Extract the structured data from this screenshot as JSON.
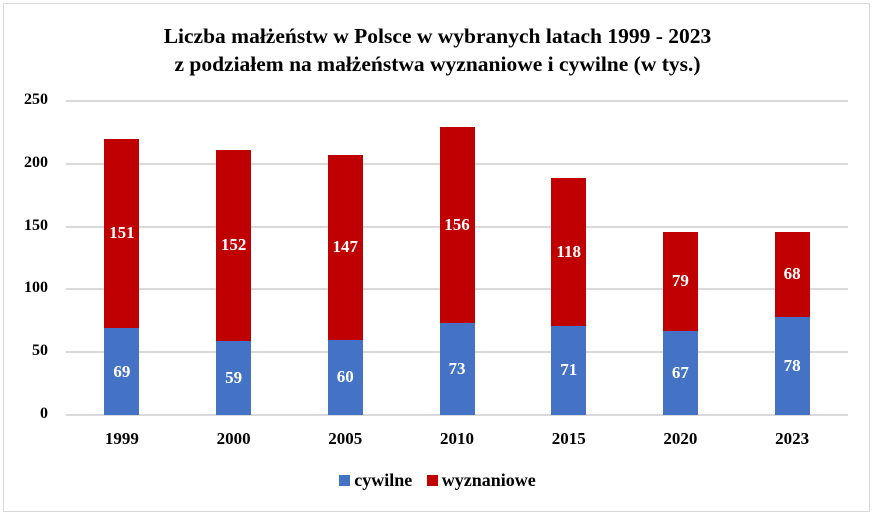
{
  "chart_data": {
    "type": "bar",
    "stacked": true,
    "title": "Liczba małżeństw w Polsce w wybranych latach 1999 - 2023 z podziałem na małżeństwa wyznaniowe i cywilne (w tys.)",
    "title_lines": [
      "Liczba małżeństw w Polsce w wybranych latach 1999 - 2023",
      "z podziałem na małżeństwa wyznaniowe i cywilne (w tys.)"
    ],
    "xlabel": "",
    "ylabel": "",
    "ylim": [
      0,
      250
    ],
    "yticks": [
      "0",
      "50",
      "100",
      "150",
      "200",
      "250"
    ],
    "grid": true,
    "legend_position": "bottom",
    "categories": [
      "1999",
      "2000",
      "2005",
      "2010",
      "2015",
      "2020",
      "2023"
    ],
    "series": [
      {
        "name": "cywilne",
        "color": "#4472C4",
        "values": [
          69,
          59,
          60,
          73,
          71,
          67,
          78
        ]
      },
      {
        "name": "wyznaniowe",
        "color": "#C00000",
        "values": [
          151,
          152,
          147,
          156,
          118,
          79,
          68
        ]
      }
    ]
  }
}
